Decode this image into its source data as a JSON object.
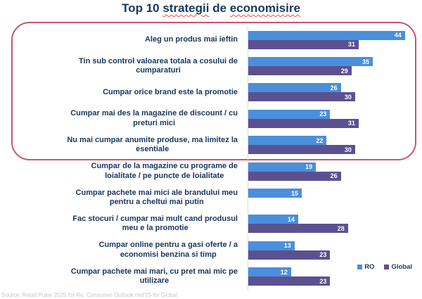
{
  "title": {
    "full": "Top 10 strategii de economisire",
    "parts": [
      {
        "text": "Top 10 ",
        "wavy": false
      },
      {
        "text": "strategii",
        "wavy": true
      },
      {
        "text": " de ",
        "wavy": false
      },
      {
        "text": "economisire",
        "wavy": true
      }
    ]
  },
  "chart_data": {
    "type": "bar",
    "orientation": "horizontal",
    "title": "Top 10 strategii de economisire",
    "categories": [
      [
        "Aleg un produs mai ieftin"
      ],
      [
        "Tin sub control valoarea totala a cosului de",
        "cumparaturi"
      ],
      [
        "Cumpar orice brand este la promotie"
      ],
      [
        "Cumpar mai des la magazine de discount / cu",
        "preturi mici"
      ],
      [
        "Nu mai cumpar anumite produse, ma limitez la",
        "esentiale"
      ],
      [
        "Cumpar de la magazine cu programe de",
        "loialitate / pe puncte de loialitate"
      ],
      [
        "Cumpar pachete mai mici ale brandului meu",
        "pentru a cheltui mai putin"
      ],
      [
        "Fac stocuri / cumpar mai mult cand produsul",
        "meu e la promotie"
      ],
      [
        "Cumpar online pentru a gasi oferte / a",
        "economisi benzina si timp"
      ],
      [
        "Cumpar pachete mai mari, cu pret mai mic pe",
        "utilizare"
      ]
    ],
    "series": [
      {
        "name": "RO",
        "color": "#4A8FDC",
        "values": [
          44,
          35,
          26,
          23,
          22,
          19,
          15,
          14,
          13,
          12
        ]
      },
      {
        "name": "Global",
        "color": "#5B5191",
        "values": [
          31,
          29,
          30,
          31,
          30,
          26,
          null,
          28,
          23,
          23
        ]
      }
    ],
    "xlim": [
      0,
      48
    ],
    "grid": false,
    "value_labels": "inside-end",
    "legend_position": "bottom-right",
    "highlighted_categories_range": [
      1,
      5
    ],
    "highlight_box_color": "#C9556D"
  },
  "colors": {
    "title_text": "#17365D",
    "label_text": "#17365D",
    "ro_bar": "#4A8FDC",
    "global_bar": "#5B5191",
    "highlight_border": "#C9556D",
    "spellcheck_wave": "#E4534F",
    "axis_line": "#D9D9D9"
  },
  "source_note": "Source: Retail Pulse 2025 for Ro, Consumer Outlook mid'25 for Global"
}
